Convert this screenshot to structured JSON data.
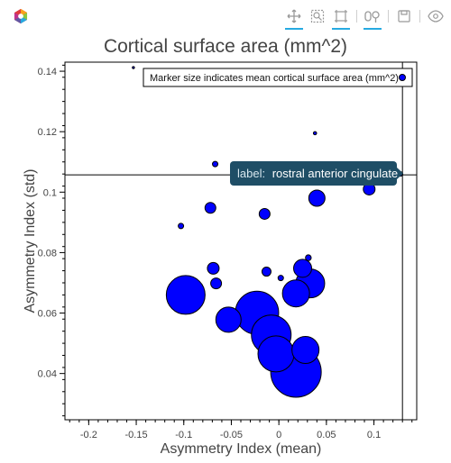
{
  "toolbar": {
    "tools": [
      {
        "name": "pan-tool",
        "active": true
      },
      {
        "name": "box-zoom-tool",
        "active": false
      },
      {
        "name": "box-select-tool",
        "active": true
      },
      {
        "name": "zoom-in-out-tool",
        "active": true
      },
      {
        "name": "save-tool",
        "active": false
      },
      {
        "name": "hover-tool",
        "active": false
      }
    ]
  },
  "chart_data": {
    "type": "scatter",
    "title": "Cortical surface area (mm^2)",
    "xlabel": "Asymmetry Index (mean)",
    "ylabel": "Asymmetry Index (std)",
    "xlim": [
      -0.225,
      0.145
    ],
    "ylim": [
      0.0247,
      0.143
    ],
    "xticks": [
      -0.2,
      -0.15,
      -0.1,
      -0.05,
      0,
      0.05,
      0.1
    ],
    "xtick_labels": [
      "-0.2",
      "-0.15",
      "-0.1",
      "-0.05",
      "0",
      "0.05",
      "0.1"
    ],
    "yticks": [
      0.04,
      0.06,
      0.08,
      0.1,
      0.12,
      0.14
    ],
    "ytick_labels": [
      "0.04",
      "0.06",
      "0.08",
      "0.1",
      "0.12",
      "0.14"
    ],
    "legend": {
      "label": "Marker size indicates  mean cortical surface area (mm^2)",
      "position": "top-right"
    },
    "marker_color": "#0000ff",
    "points": [
      {
        "x": -0.153,
        "y": 0.1412,
        "size": 1.2
      },
      {
        "x": 0.038,
        "y": 0.1195,
        "size": 1.8
      },
      {
        "x": -0.067,
        "y": 0.1093,
        "size": 3
      },
      {
        "x": 0.128,
        "y": 0.106,
        "size": 2.5
      },
      {
        "x": 0.095,
        "y": 0.101,
        "size": 6.5
      },
      {
        "x": 0.04,
        "y": 0.098,
        "size": 9
      },
      {
        "x": -0.072,
        "y": 0.0948,
        "size": 6
      },
      {
        "x": -0.015,
        "y": 0.0928,
        "size": 6
      },
      {
        "x": -0.103,
        "y": 0.0888,
        "size": 3
      },
      {
        "x": 0.031,
        "y": 0.0783,
        "size": 3.2
      },
      {
        "x": 0.025,
        "y": 0.0748,
        "size": 10
      },
      {
        "x": -0.069,
        "y": 0.0748,
        "size": 6.5
      },
      {
        "x": -0.013,
        "y": 0.0737,
        "size": 5
      },
      {
        "x": 0.033,
        "y": 0.0698,
        "size": 16
      },
      {
        "x": -0.066,
        "y": 0.0698,
        "size": 6
      },
      {
        "x": 0.002,
        "y": 0.0716,
        "size": 3
      },
      {
        "x": -0.098,
        "y": 0.066,
        "size": 21.5
      },
      {
        "x": 0.018,
        "y": 0.0665,
        "size": 15
      },
      {
        "x": -0.053,
        "y": 0.0578,
        "size": 14
      },
      {
        "x": -0.023,
        "y": 0.0601,
        "size": 24
      },
      {
        "x": -0.008,
        "y": 0.0528,
        "size": 22
      },
      {
        "x": -0.003,
        "y": 0.0465,
        "size": 20
      },
      {
        "x": 0.028,
        "y": 0.0478,
        "size": 15
      },
      {
        "x": 0.018,
        "y": 0.0405,
        "size": 28
      }
    ],
    "crosshair": {
      "x": 0.13,
      "y": 0.1057
    },
    "tooltip": {
      "key": "label:",
      "value": "rostral anterior cingulate",
      "color": "#1f4e66"
    }
  }
}
